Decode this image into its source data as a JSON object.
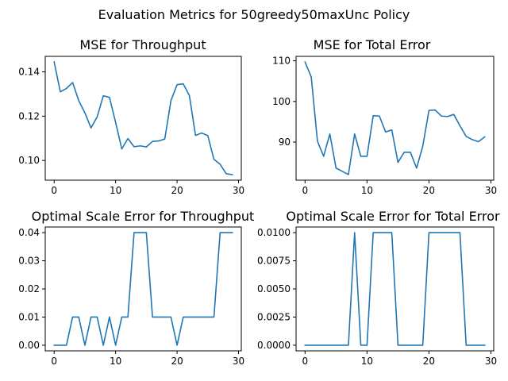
{
  "figure": {
    "suptitle": "Evaluation Metrics for 50greedy50maxUnc Policy"
  },
  "colors": {
    "line": "#1f77b4"
  },
  "chart_data": [
    {
      "type": "line",
      "title": "MSE for Throughput",
      "x": [
        0,
        1,
        2,
        3,
        4,
        5,
        6,
        7,
        8,
        9,
        10,
        11,
        12,
        13,
        14,
        15,
        16,
        17,
        18,
        19,
        20,
        21,
        22,
        23,
        24,
        25,
        26,
        27,
        28,
        29
      ],
      "y": [
        0.1445,
        0.131,
        0.1325,
        0.1352,
        0.127,
        0.1215,
        0.1147,
        0.1197,
        0.1292,
        0.1285,
        0.1172,
        0.1052,
        0.1099,
        0.1062,
        0.1066,
        0.1061,
        0.1086,
        0.1088,
        0.1097,
        0.127,
        0.1342,
        0.1346,
        0.1293,
        0.1113,
        0.1124,
        0.1112,
        0.1005,
        0.0983,
        0.094,
        0.0936
      ],
      "xlim": [
        -1.45,
        30.45
      ],
      "ylim": [
        0.0911,
        0.147
      ],
      "xticks": [
        0,
        10,
        20,
        30
      ],
      "yticks": [
        0.1,
        0.12,
        0.14
      ],
      "xtick_labels": [
        "0",
        "10",
        "20",
        "30"
      ],
      "ytick_labels": [
        "0.10",
        "0.12",
        "0.14"
      ]
    },
    {
      "type": "line",
      "title": "MSE for Total Error",
      "x": [
        0,
        1,
        2,
        3,
        4,
        5,
        6,
        7,
        8,
        9,
        10,
        11,
        12,
        13,
        14,
        15,
        16,
        17,
        18,
        19,
        20,
        21,
        22,
        23,
        24,
        25,
        26,
        27,
        28,
        29
      ],
      "y": [
        109.7,
        106.0,
        90.2,
        86.5,
        92.0,
        83.6,
        82.8,
        82.0,
        92.0,
        86.5,
        86.5,
        96.5,
        96.4,
        92.5,
        93.0,
        85.0,
        87.5,
        87.5,
        83.6,
        89.0,
        97.8,
        97.9,
        96.4,
        96.3,
        96.8,
        94.0,
        91.4,
        90.6,
        90.1,
        91.3
      ],
      "xlim": [
        -1.45,
        30.45
      ],
      "ylim": [
        80.62,
        111.1
      ],
      "xticks": [
        0,
        10,
        20,
        30
      ],
      "yticks": [
        90,
        100,
        110
      ],
      "xtick_labels": [
        "0",
        "10",
        "20",
        "30"
      ],
      "ytick_labels": [
        "90",
        "100",
        "110"
      ]
    },
    {
      "type": "line",
      "title": "Optimal Scale Error for Throughput",
      "x": [
        0,
        1,
        2,
        3,
        4,
        5,
        6,
        7,
        8,
        9,
        10,
        11,
        12,
        13,
        14,
        15,
        16,
        17,
        18,
        19,
        20,
        21,
        22,
        23,
        24,
        25,
        26,
        27,
        28,
        29
      ],
      "y": [
        0,
        0,
        0,
        0.01,
        0.01,
        0,
        0.01,
        0.01,
        0,
        0.01,
        0,
        0.01,
        0.01,
        0.04,
        0.04,
        0.04,
        0.01,
        0.01,
        0.01,
        0.01,
        0,
        0.01,
        0.01,
        0.01,
        0.01,
        0.01,
        0.01,
        0.04,
        0.04,
        0.04
      ],
      "xlim": [
        -1.45,
        30.45
      ],
      "ylim": [
        -0.002,
        0.042
      ],
      "xticks": [
        0,
        10,
        20,
        30
      ],
      "yticks": [
        0.0,
        0.01,
        0.02,
        0.03,
        0.04
      ],
      "xtick_labels": [
        "0",
        "10",
        "20",
        "30"
      ],
      "ytick_labels": [
        "0.00",
        "0.01",
        "0.02",
        "0.03",
        "0.04"
      ]
    },
    {
      "type": "line",
      "title": "Optimal Scale Error for Total Error",
      "x": [
        0,
        1,
        2,
        3,
        4,
        5,
        6,
        7,
        8,
        9,
        10,
        11,
        12,
        13,
        14,
        15,
        16,
        17,
        18,
        19,
        20,
        21,
        22,
        23,
        24,
        25,
        26,
        27,
        28,
        29
      ],
      "y": [
        0,
        0,
        0,
        0,
        0,
        0,
        0,
        0,
        0.01,
        0,
        0,
        0.01,
        0.01,
        0.01,
        0.01,
        0,
        0,
        0,
        0,
        0,
        0.01,
        0.01,
        0.01,
        0.01,
        0.01,
        0.01,
        0,
        0,
        0,
        0
      ],
      "xlim": [
        -1.45,
        30.45
      ],
      "ylim": [
        -0.0005,
        0.0105
      ],
      "xticks": [
        0,
        10,
        20,
        30
      ],
      "yticks": [
        0.0,
        0.0025,
        0.005,
        0.0075,
        0.01
      ],
      "xtick_labels": [
        "0",
        "10",
        "20",
        "30"
      ],
      "ytick_labels": [
        "0.0000",
        "0.0025",
        "0.0050",
        "0.0075",
        "0.0100"
      ]
    }
  ]
}
